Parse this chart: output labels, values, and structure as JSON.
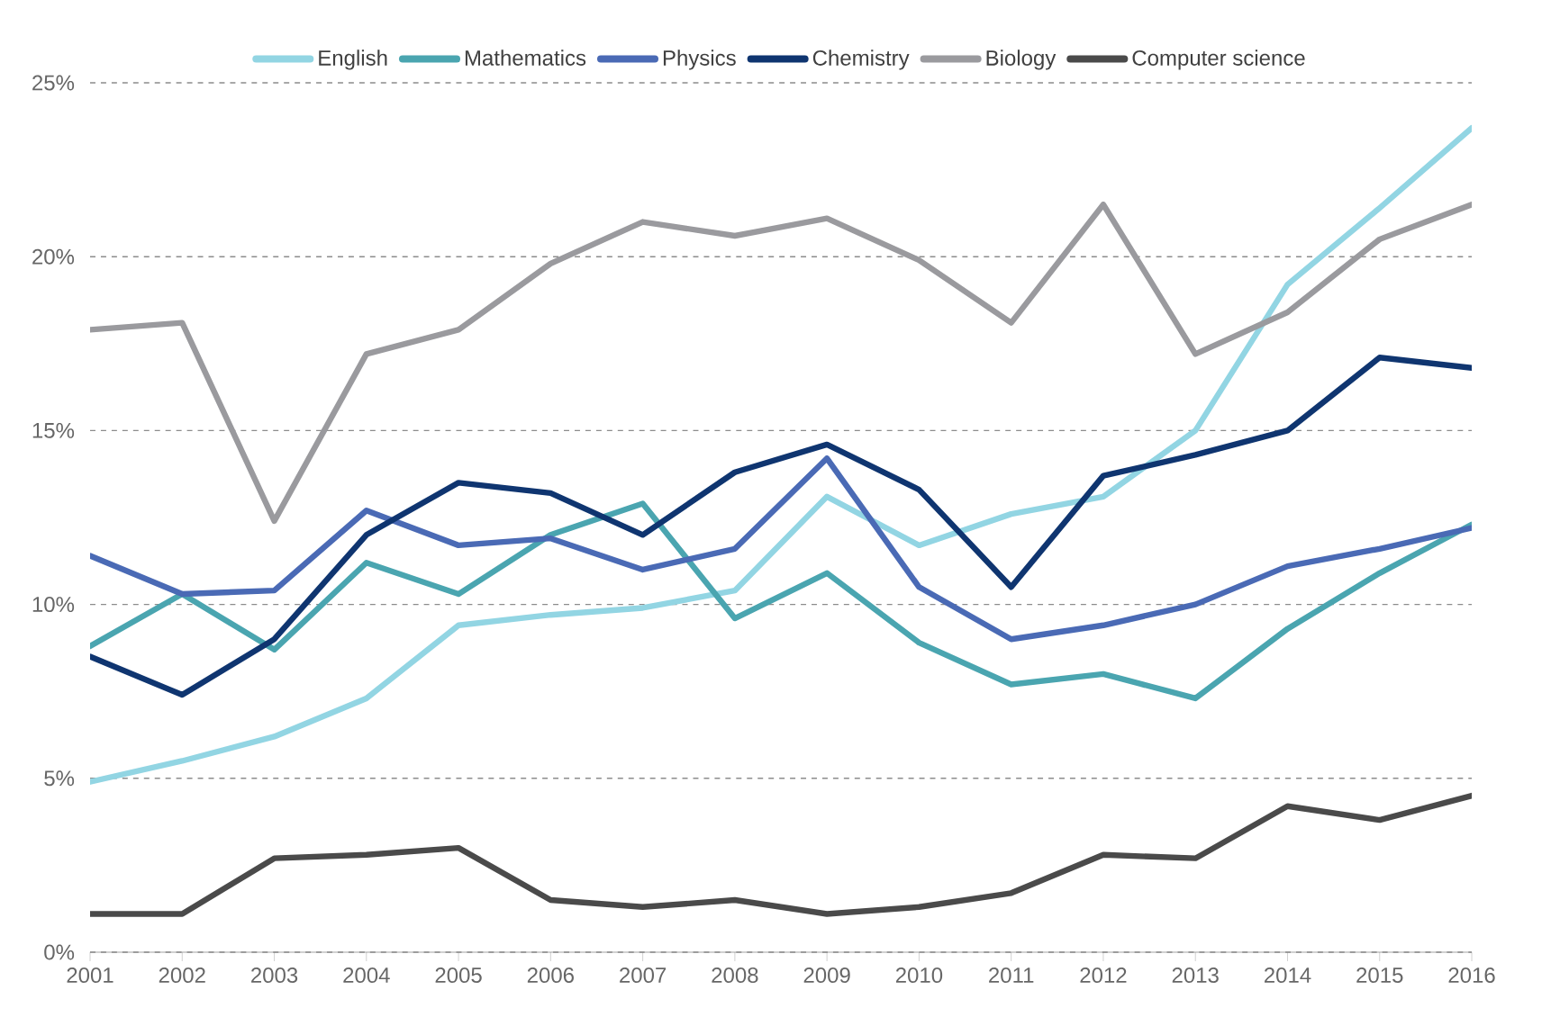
{
  "chart_data": {
    "type": "line",
    "categories": [
      "2001",
      "2002",
      "2003",
      "2004",
      "2005",
      "2006",
      "2007",
      "2008",
      "2009",
      "2010",
      "2011",
      "2012",
      "2013",
      "2014",
      "2015",
      "2016"
    ],
    "series": [
      {
        "name": "English",
        "color": "#92d5e3",
        "values": [
          4.9,
          5.5,
          6.2,
          7.3,
          9.4,
          9.7,
          9.9,
          10.4,
          13.1,
          11.7,
          12.6,
          13.1,
          15.0,
          19.2,
          21.4,
          23.7
        ]
      },
      {
        "name": "Mathematics",
        "color": "#4aa5b0",
        "values": [
          8.8,
          10.3,
          8.7,
          11.2,
          10.3,
          12.0,
          12.9,
          9.6,
          10.9,
          8.9,
          7.7,
          8.0,
          7.3,
          9.3,
          10.9,
          12.3
        ]
      },
      {
        "name": "Physics",
        "color": "#4a6ab5",
        "values": [
          11.4,
          10.3,
          10.4,
          12.7,
          11.7,
          11.9,
          11.0,
          11.6,
          14.2,
          10.5,
          9.0,
          9.4,
          10.0,
          11.1,
          11.6,
          12.2
        ]
      },
      {
        "name": "Chemistry",
        "color": "#0f3570",
        "values": [
          8.5,
          7.4,
          9.0,
          12.0,
          13.5,
          13.2,
          12.0,
          13.8,
          14.6,
          13.3,
          10.5,
          13.7,
          14.3,
          15.0,
          17.1,
          16.8
        ]
      },
      {
        "name": "Biology",
        "color": "#9a9a9e",
        "values": [
          17.9,
          18.1,
          12.4,
          17.2,
          17.9,
          19.8,
          21.0,
          20.6,
          21.1,
          19.9,
          18.1,
          21.5,
          17.2,
          18.4,
          20.5,
          21.5
        ]
      },
      {
        "name": "Computer science",
        "color": "#4a4a4a",
        "values": [
          1.1,
          1.1,
          2.7,
          2.8,
          3.0,
          1.5,
          1.3,
          1.5,
          1.1,
          1.3,
          1.7,
          2.8,
          2.7,
          4.2,
          3.8,
          4.5
        ]
      }
    ],
    "ylim": [
      0,
      25
    ],
    "yticks": [
      {
        "value": 0,
        "label": "0%"
      },
      {
        "value": 5,
        "label": "5%"
      },
      {
        "value": 10,
        "label": "10%"
      },
      {
        "value": 15,
        "label": "15%"
      },
      {
        "value": 20,
        "label": "20%"
      },
      {
        "value": 25,
        "label": "25%"
      }
    ],
    "grid": "y",
    "legend": "top",
    "marker": "none",
    "line_style": "solid"
  }
}
